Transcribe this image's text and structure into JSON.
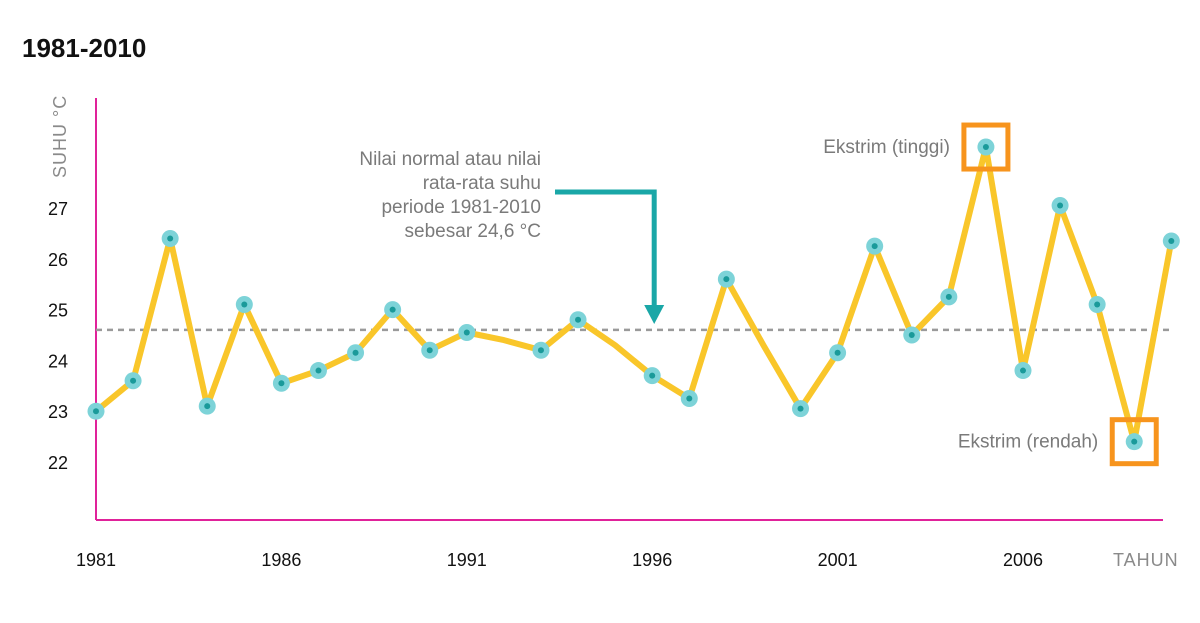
{
  "chart_data": {
    "type": "line",
    "title": "1981-2010",
    "ylabel": "SUHU °C",
    "xlabel": "TAHUN",
    "ylim": [
      21,
      28.3
    ],
    "xlim": [
      1981,
      2010
    ],
    "yticks": [
      22,
      23,
      24,
      25,
      26,
      27
    ],
    "xticks": [
      1981,
      1986,
      1991,
      1996,
      2001,
      2006
    ],
    "x": [
      1981,
      1982,
      1983,
      1984,
      1985,
      1986,
      1987,
      1988,
      1989,
      1990,
      1991,
      1992,
      1993,
      1994,
      1995,
      1996,
      1997,
      1998,
      1999,
      2000,
      2001,
      2002,
      2003,
      2004,
      2005,
      2006,
      2007,
      2008,
      2009,
      2010
    ],
    "values": [
      23.0,
      23.6,
      26.4,
      23.1,
      25.1,
      23.55,
      23.8,
      24.15,
      25.0,
      24.2,
      24.55,
      null,
      24.2,
      24.8,
      null,
      23.7,
      23.25,
      25.6,
      null,
      23.05,
      24.15,
      26.25,
      24.5,
      25.25,
      28.2,
      23.8,
      27.05,
      25.1,
      22.4,
      26.35
    ],
    "line_values": [
      23.0,
      23.6,
      26.4,
      23.1,
      25.1,
      23.55,
      23.8,
      24.15,
      25.0,
      24.2,
      24.55,
      24.4,
      24.2,
      24.8,
      24.3,
      23.7,
      23.25,
      25.6,
      24.3,
      23.05,
      24.15,
      26.25,
      24.5,
      25.25,
      28.2,
      23.8,
      27.05,
      25.1,
      22.4,
      26.35
    ],
    "reference_line": {
      "value": 24.6,
      "annotation": [
        "Nilai normal atau nilai",
        "rata-rata suhu",
        "periode 1981-2010",
        "sebesar 24,6 °C"
      ],
      "arrow_at_x": 1996
    },
    "highlights": [
      {
        "x": 2005,
        "value": 28.2,
        "label": "Ekstrim (tinggi)"
      },
      {
        "x": 2009,
        "value": 22.4,
        "label": "Ekstrim (rendah)"
      }
    ],
    "colors": {
      "line": "#f9c62a",
      "marker_fill": "#7dd3d8",
      "marker_dot": "#1a9a9a",
      "axis": "#e0229a",
      "reference": "#9a9a9a",
      "arrow": "#1aa7a7",
      "highlight_box": "#f7941d"
    },
    "grid": false
  }
}
